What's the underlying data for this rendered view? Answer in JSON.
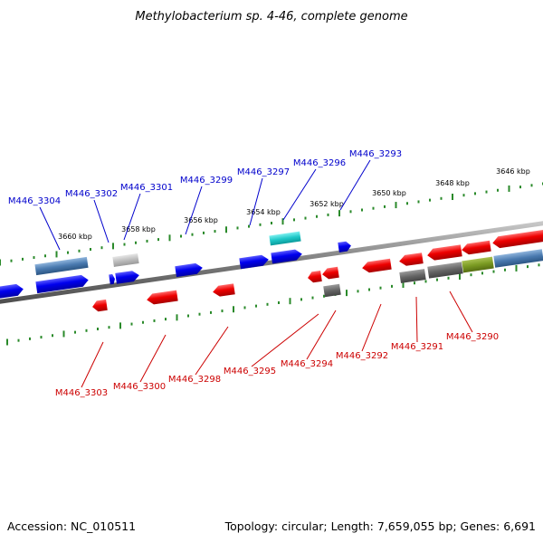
{
  "title": "Methylobacterium sp. 4-46, complete genome",
  "footer": {
    "accession": "Accession: NC_010511",
    "summary": "Topology: circular; Length: 7,659,055 bp; Genes: 6,691"
  },
  "colors": {
    "plus_label": "#0000cc",
    "minus_label": "#cc0000",
    "backbone": "#808080",
    "tick": "#2a8a2a"
  },
  "tick_labels": [
    "3660 kbp",
    "3658 kbp",
    "3656 kbp",
    "3654 kbp",
    "3652 kbp",
    "3650 kbp",
    "3648 kbp",
    "3646 kbp"
  ],
  "plus_strand_labels": [
    "M446_3304",
    "M446_3302",
    "M446_3301",
    "M446_3299",
    "M446_3297",
    "M446_3296",
    "M446_3293"
  ],
  "minus_strand_labels": [
    "M446_3303",
    "M446_3300",
    "M446_3298",
    "M446_3295",
    "M446_3294",
    "M446_3292",
    "M446_3291",
    "M446_3290"
  ]
}
